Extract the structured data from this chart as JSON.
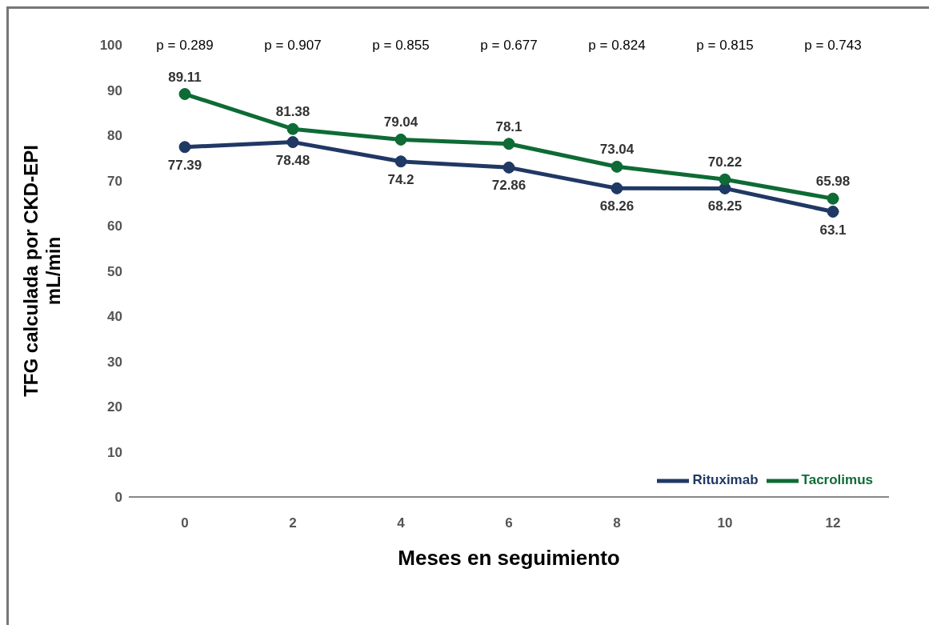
{
  "chart_data": {
    "type": "line",
    "xlabel": "Meses en seguimiento",
    "ylabel": "TFG calculada por CKD-EPI mL/min",
    "categories": [
      "0",
      "2",
      "4",
      "6",
      "8",
      "10",
      "12"
    ],
    "series": [
      {
        "name": "Rituximab",
        "color": "#203864",
        "values": [
          77.39,
          78.48,
          74.2,
          72.86,
          68.26,
          68.25,
          63.1
        ]
      },
      {
        "name": "Tacrolimus",
        "color": "#0e6b35",
        "values": [
          89.11,
          81.38,
          79.04,
          78.1,
          73.04,
          70.22,
          65.98
        ]
      }
    ],
    "ylim": [
      0,
      100
    ],
    "yticks": [
      0,
      10,
      20,
      30,
      40,
      50,
      60,
      70,
      80,
      90,
      100
    ],
    "grid": false,
    "legend": "bottom right",
    "marker": "circle",
    "line_style": "solid",
    "data_labels": true,
    "annotations": [
      "p = 0.289",
      "p = 0.907",
      "p = 0.855",
      "p = 0.677",
      "p = 0.824",
      "p = 0.815",
      "p = 0.743"
    ]
  }
}
